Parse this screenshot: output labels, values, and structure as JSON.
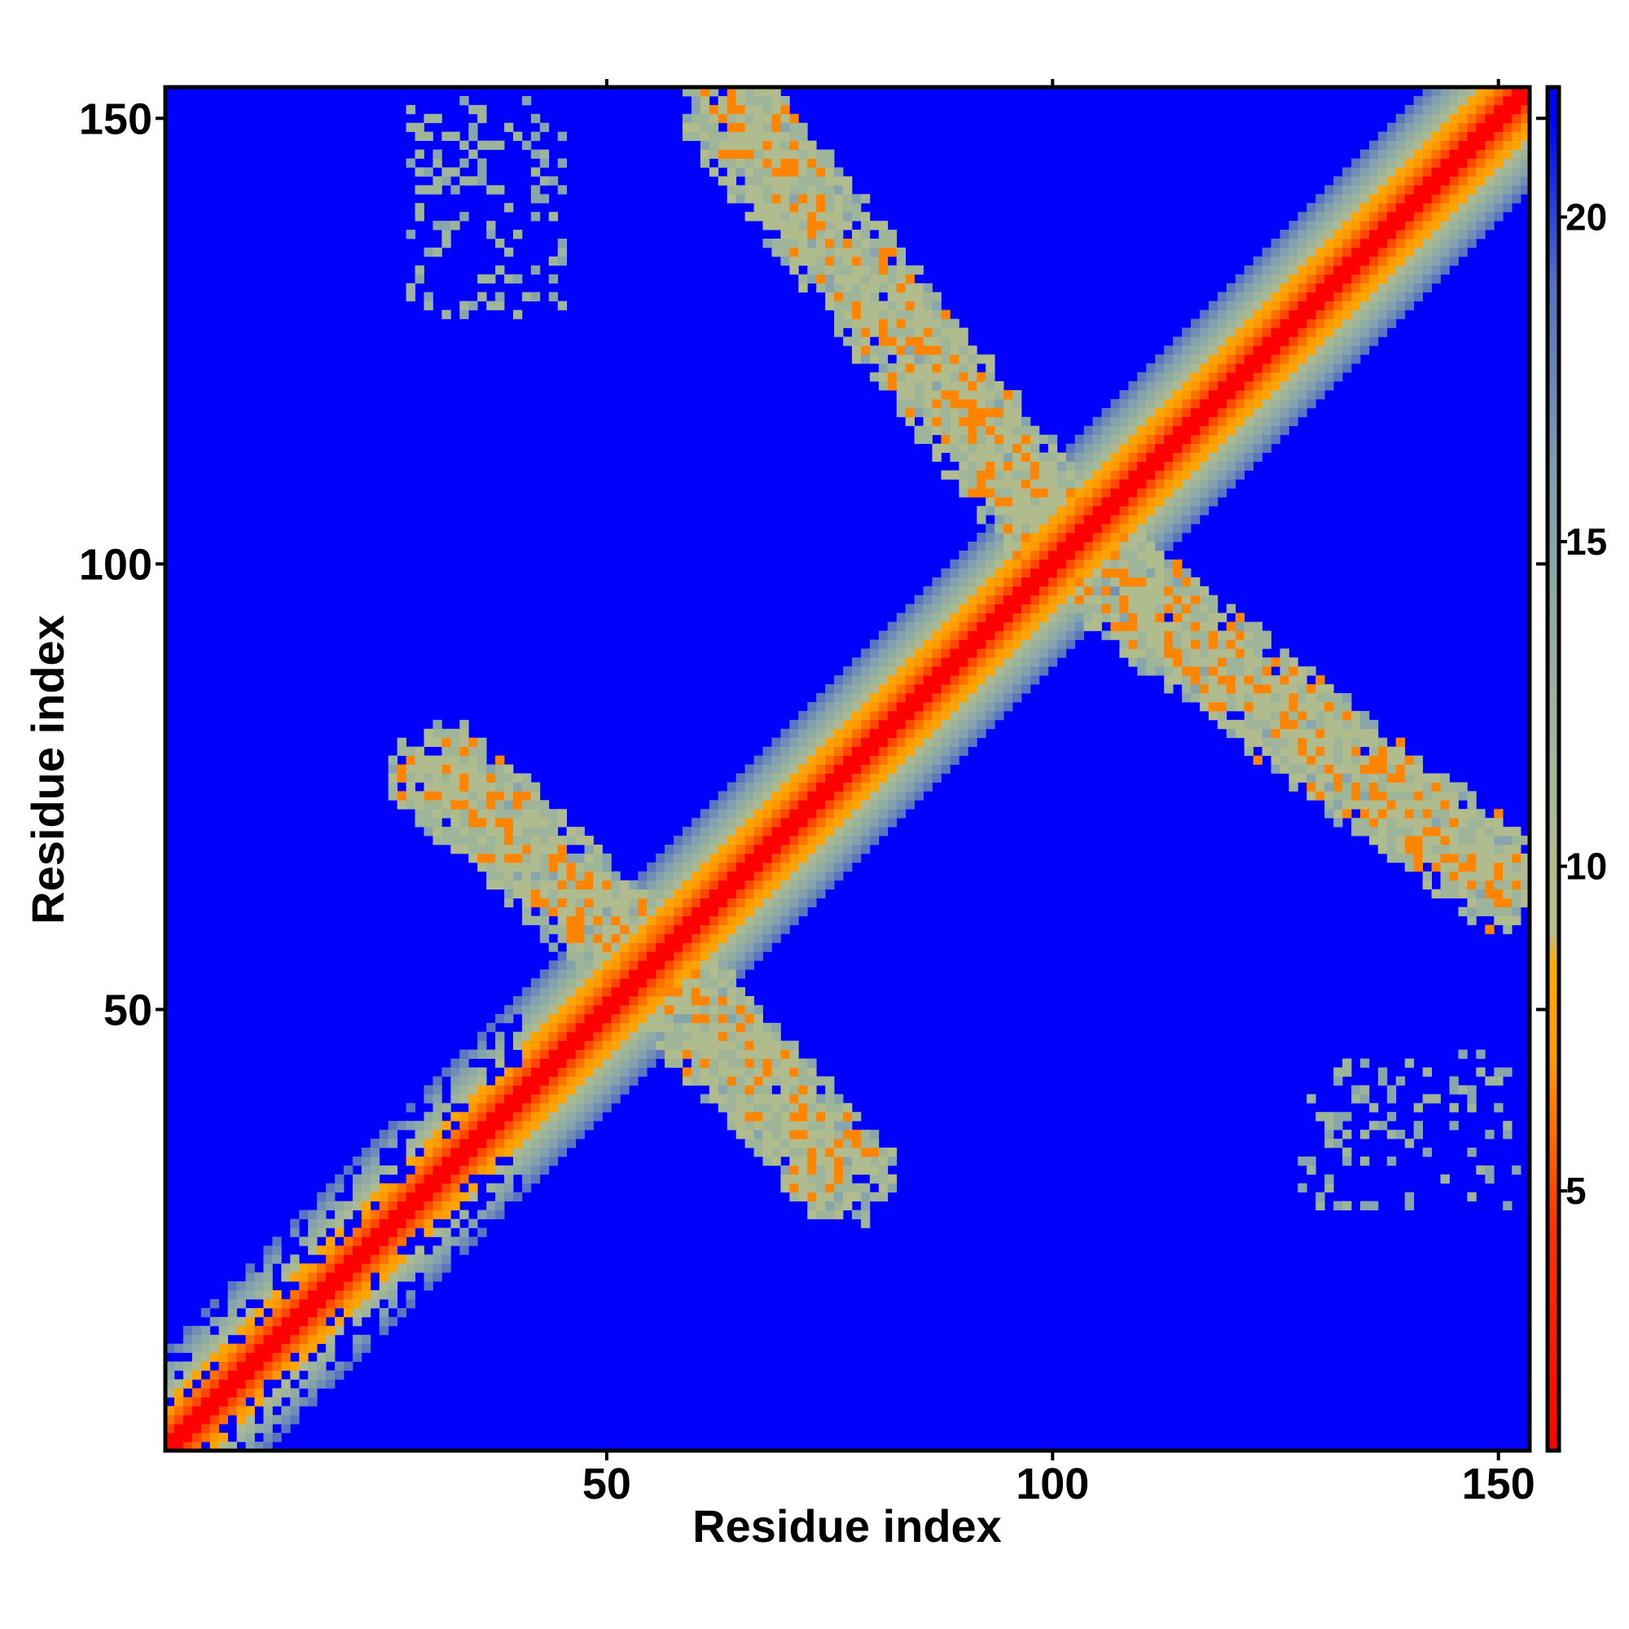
{
  "chart_data": {
    "type": "heatmap",
    "title": "",
    "xlabel": "Residue index",
    "ylabel": "Residue index",
    "n_residues": 153,
    "xlim": [
      1,
      153
    ],
    "ylim": [
      1,
      153
    ],
    "x_ticks": [
      50,
      100,
      150
    ],
    "y_ticks": [
      50,
      100,
      150
    ],
    "x_tick_labels": [
      "50",
      "100",
      "150"
    ],
    "y_tick_labels": [
      "50",
      "100",
      "150"
    ],
    "value_range": [
      1,
      22
    ],
    "colorbar": {
      "ticks": [
        5,
        10,
        15,
        20
      ],
      "tick_labels": [
        "5",
        "10",
        "15",
        "20"
      ],
      "placement": "right"
    },
    "colorscale": [
      {
        "value": 1,
        "color": "#ff0000"
      },
      {
        "value": 4.5,
        "color": "#ff3300"
      },
      {
        "value": 7,
        "color": "#ff9900"
      },
      {
        "value": 8.5,
        "color": "#ffaa00"
      },
      {
        "value": 9,
        "color": "#b8c088"
      },
      {
        "value": 12,
        "color": "#9fb59a"
      },
      {
        "value": 16,
        "color": "#7f9fb0"
      },
      {
        "value": 19,
        "color": "#5570c0"
      },
      {
        "value": 21.5,
        "color": "#0000ff"
      }
    ],
    "background_value": 22,
    "structure": {
      "diagonal": {
        "from": 1,
        "to": 153,
        "core_value": 1,
        "halfwidth_residues": 11
      },
      "contact_bands": [
        {
          "description": "antiparallel",
          "from": [
            63,
            152
          ],
          "to": [
            101,
            103
          ],
          "value": 11
        },
        {
          "description": "antiparallel",
          "from": [
            103,
            101
          ],
          "to": [
            152,
            63
          ],
          "value": 11
        },
        {
          "description": "antiparallel",
          "from": [
            30,
            78
          ],
          "to": [
            56,
            54
          ],
          "value": 11
        },
        {
          "description": "antiparallel",
          "from": [
            54,
            56
          ],
          "to": [
            78,
            30
          ],
          "value": 11
        }
      ],
      "sparse_patches": [
        {
          "x": [
            28,
            45
          ],
          "y": [
            128,
            152
          ],
          "value": 14
        },
        {
          "x": [
            128,
            152
          ],
          "y": [
            28,
            45
          ],
          "value": 14
        }
      ]
    }
  }
}
